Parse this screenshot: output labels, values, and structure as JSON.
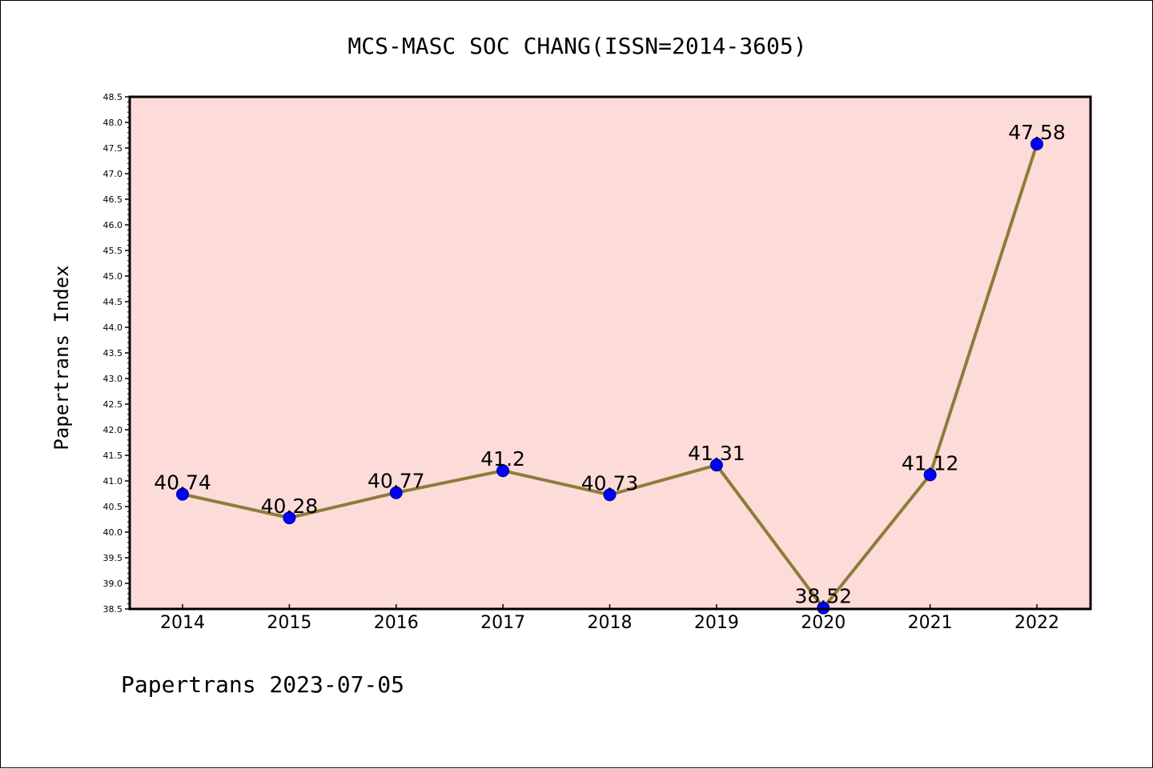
{
  "chart_data": {
    "type": "line",
    "title": "MCS-MASC SOC CHANG(ISSN=2014-3605)",
    "xlabel": "",
    "ylabel": "Papertrans Index",
    "categories": [
      "2014",
      "2015",
      "2016",
      "2017",
      "2018",
      "2019",
      "2020",
      "2021",
      "2022"
    ],
    "series": [
      {
        "values": [
          40.74,
          40.28,
          40.77,
          41.2,
          40.73,
          41.31,
          38.52,
          41.12,
          47.58
        ],
        "labels": [
          "40.74",
          "40.28",
          "40.77",
          "41.2",
          "40.73",
          "41.31",
          "38.52",
          "41.12",
          "47.58"
        ]
      }
    ],
    "ylim": [
      38.5,
      48.5
    ],
    "yticks": [
      "38.5",
      "39.0",
      "39.5",
      "40.0",
      "40.5",
      "41.0",
      "41.5",
      "42.0",
      "42.5",
      "43.0",
      "43.5",
      "44.0",
      "44.5",
      "45.0",
      "45.5",
      "46.0",
      "46.5",
      "47.0",
      "47.5",
      "48.0",
      "48.5"
    ],
    "grid": false,
    "colors": {
      "plot_background": "#fddbd8",
      "line": "#8b7d3a",
      "marker": "#0000ff",
      "marker_edge": "#00008b"
    }
  },
  "footer": "Papertrans 2023-07-05"
}
